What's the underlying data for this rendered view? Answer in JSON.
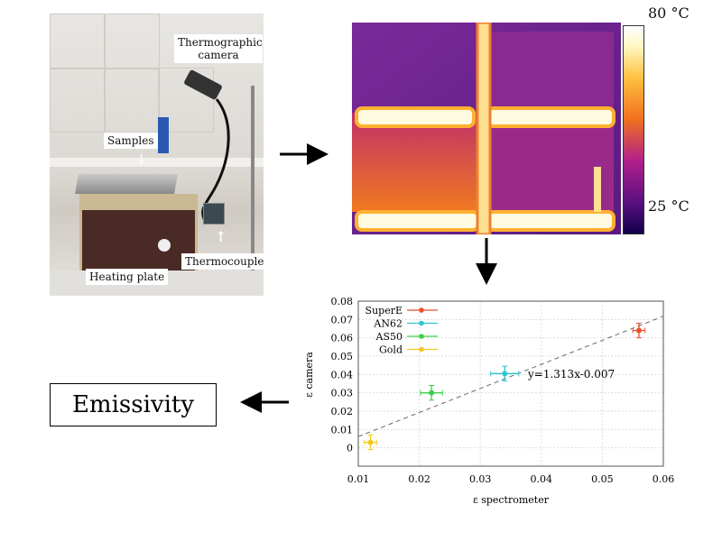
{
  "photo": {
    "labels": {
      "camera": "Thermographic camera",
      "samples": "Samples",
      "plate": "Heating plate",
      "thermocouple": "Thermocouple"
    }
  },
  "thermal": {
    "max_label": "80 °C",
    "min_label": "25 °C"
  },
  "result_box": "Emissivity",
  "chart_data": {
    "type": "scatter",
    "xlabel": "ε  spectrometer",
    "ylabel": "ε  camera",
    "xlim": [
      0.01,
      0.06
    ],
    "ylim": [
      -0.01,
      0.08
    ],
    "xticks": [
      "0.01",
      "0.02",
      "0.03",
      "0.04",
      "0.05",
      "0.06"
    ],
    "yticks": [
      "0",
      "0.01",
      "0.02",
      "0.03",
      "0.04",
      "0.05",
      "0.06",
      "0.07",
      "0.08"
    ],
    "grid": true,
    "legend_position": "top-left",
    "series": [
      {
        "name": "SuperE",
        "color": "#e8512a",
        "x": 0.056,
        "y": 0.064,
        "xerr": 0.001,
        "yerr": 0.004
      },
      {
        "name": "AN62",
        "color": "#2ec4cf",
        "x": 0.034,
        "y": 0.0405,
        "xerr": 0.0023,
        "yerr": 0.004
      },
      {
        "name": "AS50",
        "color": "#3bd04a",
        "x": 0.022,
        "y": 0.03,
        "xerr": 0.0018,
        "yerr": 0.004
      },
      {
        "name": "Gold",
        "color": "#f2c81e",
        "x": 0.012,
        "y": 0.003,
        "xerr": 0.001,
        "yerr": 0.004
      }
    ],
    "fit": {
      "slope": 1.313,
      "intercept": -0.007,
      "label": "y=1.313x-0.007"
    }
  }
}
